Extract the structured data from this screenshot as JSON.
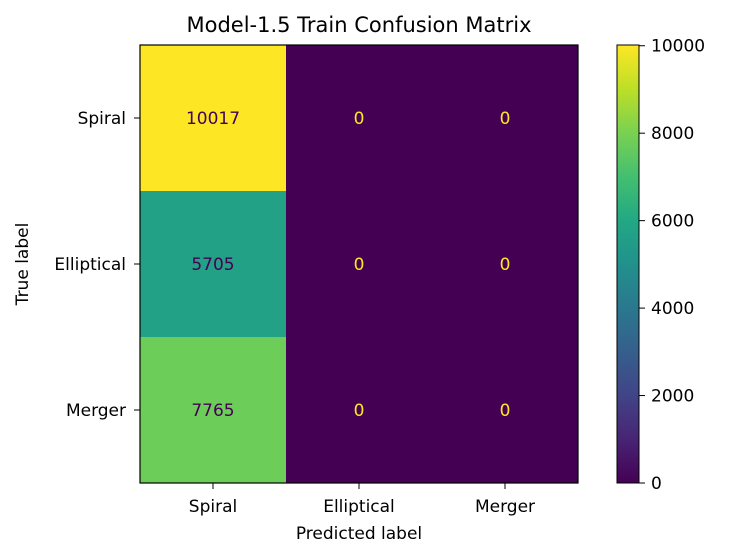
{
  "chart_data": {
    "type": "heatmap",
    "title": "Model-1.5 Train Confusion Matrix",
    "xlabel": "Predicted label",
    "ylabel": "True label",
    "x_categories": [
      "Spiral",
      "Elliptical",
      "Merger"
    ],
    "y_categories": [
      "Spiral",
      "Elliptical",
      "Merger"
    ],
    "matrix": [
      [
        10017,
        0,
        0
      ],
      [
        5705,
        0,
        0
      ],
      [
        7765,
        0,
        0
      ]
    ],
    "colormap": "viridis",
    "colorbar": {
      "vmin": 0,
      "vmax": 10017,
      "ticks": [
        0,
        2000,
        4000,
        6000,
        8000,
        10000
      ],
      "tick_labels": [
        "0",
        "2000",
        "4000",
        "6000",
        "8000",
        "10000"
      ]
    },
    "grid": false,
    "text_colors": {
      "on_dark": "#fde725",
      "on_light": "#440154"
    }
  }
}
